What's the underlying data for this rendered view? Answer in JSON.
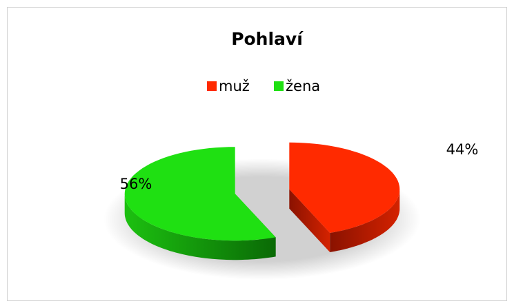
{
  "chart_data": {
    "type": "pie",
    "title": "Pohlaví",
    "categories": [
      "muž",
      "žena"
    ],
    "values": [
      44,
      56
    ],
    "value_labels": [
      "44%",
      "56%"
    ],
    "colors": [
      "#ff2a00",
      "#1fe012"
    ],
    "legend": "top"
  }
}
